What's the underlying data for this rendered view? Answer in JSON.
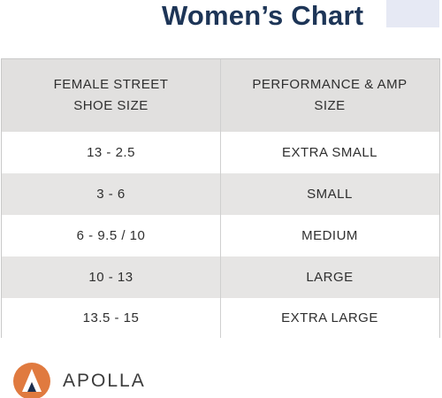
{
  "title": "Women’s Chart",
  "colors": {
    "title": "#1d3557",
    "header_bg": "#e1e0df",
    "stripe_bg": "#e6e5e4",
    "logo_orange": "#e07a3f",
    "logo_navy": "#1d2f4f"
  },
  "table": {
    "headers": [
      "FEMALE STREET\nSHOE SIZE",
      "PERFORMANCE & AMP\nSIZE"
    ],
    "rows": [
      [
        "13 - 2.5",
        "EXTRA SMALL"
      ],
      [
        "3 - 6",
        "SMALL"
      ],
      [
        "6 - 9.5 /  10",
        "MEDIUM"
      ],
      [
        "10 - 13",
        "LARGE"
      ],
      [
        "13.5 - 15",
        "EXTRA LARGE"
      ]
    ]
  },
  "brand": {
    "name": "APOLLA",
    "logo_icon": "apolla-logo-icon"
  }
}
